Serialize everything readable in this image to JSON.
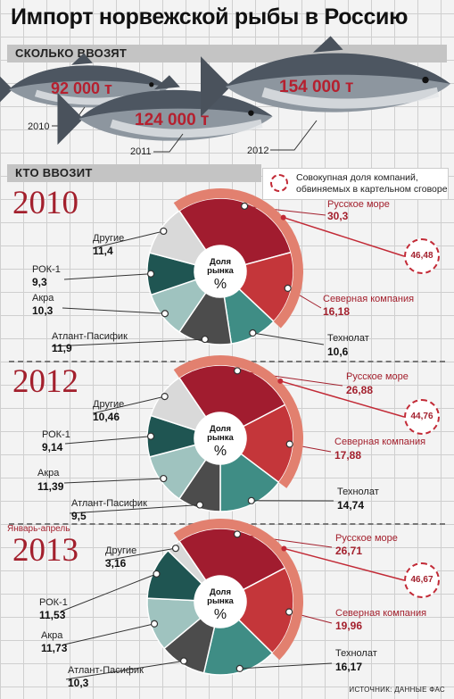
{
  "title": "Импорт норвежской рыбы в Россию",
  "section_volume": "СКОЛЬКО ВВОЗЯТ",
  "section_who": "КТО ВВОЗИТ",
  "legend": "Совокупная доля компаний, обвиняемых в картельном сговоре",
  "center_label": "Доля рынка",
  "center_unit": "%",
  "period_note": "Январь-апрель",
  "source": "ИСТОЧНИК: ДАННЫЕ ФАС",
  "colors": {
    "Русское море": "#a11c2f",
    "Северная компания": "#c4363a",
    "Технолат": "#3f8d85",
    "Атлант-Пасифик": "#4c4c4c",
    "Акра": "#9fc3bf",
    "РОК-1": "#1f5552",
    "Другие": "#d9d9d9",
    "cartel_ring": "#e2806f"
  },
  "chart_data": [
    {
      "type": "bar",
      "title": "СКОЛЬКО ВВОЗЯТ",
      "categories": [
        "2010",
        "2011",
        "2012"
      ],
      "values": [
        92000,
        124000,
        154000
      ],
      "labels": [
        "92 000 т",
        "124 000 т",
        "154 000 т"
      ]
    },
    {
      "type": "pie",
      "year": "2010",
      "cartel_total": "46,48",
      "slices": [
        {
          "name": "Русское море",
          "value": 30.3,
          "label": "30,3",
          "cartel": true
        },
        {
          "name": "Северная компания",
          "value": 16.18,
          "label": "16,18",
          "cartel": true
        },
        {
          "name": "Технолат",
          "value": 10.6,
          "label": "10,6"
        },
        {
          "name": "Атлант-Пасифик",
          "value": 11.9,
          "label": "11,9"
        },
        {
          "name": "Акра",
          "value": 10.3,
          "label": "10,3"
        },
        {
          "name": "РОК-1",
          "value": 9.3,
          "label": "9,3"
        },
        {
          "name": "Другие",
          "value": 11.4,
          "label": "11,4"
        }
      ]
    },
    {
      "type": "pie",
      "year": "2012",
      "cartel_total": "44,76",
      "slices": [
        {
          "name": "Русское море",
          "value": 26.88,
          "label": "26,88",
          "cartel": true
        },
        {
          "name": "Северная компания",
          "value": 17.88,
          "label": "17,88",
          "cartel": true
        },
        {
          "name": "Технолат",
          "value": 14.74,
          "label": "14,74"
        },
        {
          "name": "Атлант-Пасифик",
          "value": 9.5,
          "label": "9,5"
        },
        {
          "name": "Акра",
          "value": 11.39,
          "label": "11,39"
        },
        {
          "name": "РОК-1",
          "value": 9.14,
          "label": "9,14"
        },
        {
          "name": "Другие",
          "value": 10.46,
          "label": "10,46"
        }
      ]
    },
    {
      "type": "pie",
      "year": "2013",
      "cartel_total": "46,67",
      "slices": [
        {
          "name": "Русское море",
          "value": 26.71,
          "label": "26,71",
          "cartel": true
        },
        {
          "name": "Северная компания",
          "value": 19.96,
          "label": "19,96",
          "cartel": true
        },
        {
          "name": "Технолат",
          "value": 16.17,
          "label": "16,17"
        },
        {
          "name": "Атлант-Пасифик",
          "value": 10.3,
          "label": "10,3"
        },
        {
          "name": "Акра",
          "value": 11.73,
          "label": "11,73"
        },
        {
          "name": "РОК-1",
          "value": 11.53,
          "label": "11,53"
        },
        {
          "name": "Другие",
          "value": 3.16,
          "label": "3,16"
        }
      ]
    }
  ]
}
